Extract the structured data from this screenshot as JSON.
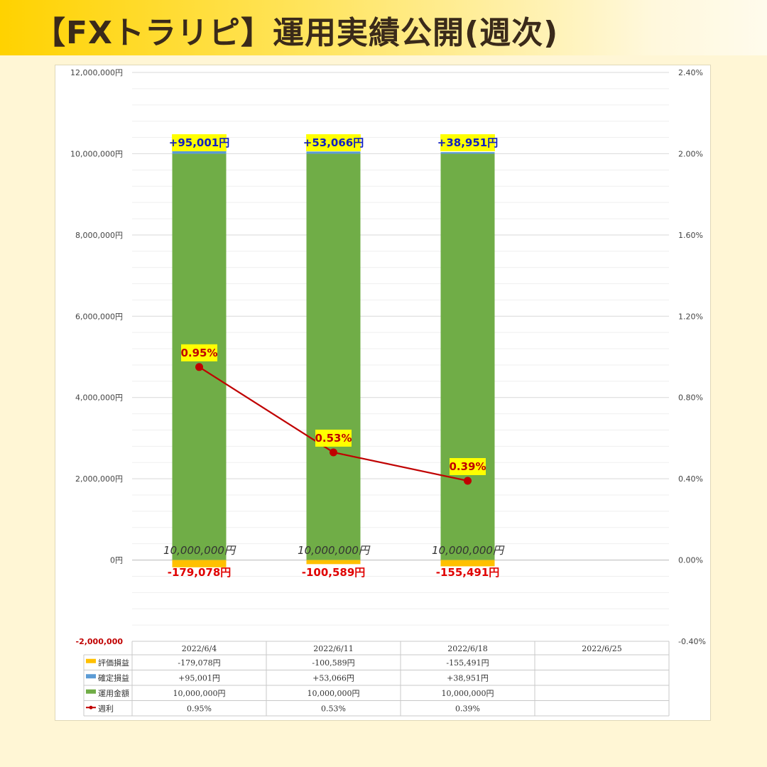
{
  "banner": {
    "title": "【FXトラリピ】運用実績公開(週次)"
  },
  "chart_data": {
    "type": "bar",
    "stacked": true,
    "categories": [
      "2022/6/4",
      "2022/6/11",
      "2022/6/18",
      "2022/6/25"
    ],
    "series": [
      {
        "name": "評価損益",
        "values": [
          -179078,
          -100589,
          -155491,
          null
        ],
        "labels": [
          "-179,078円",
          "-100,589円",
          "-155,491円",
          ""
        ],
        "color": "#ffc000"
      },
      {
        "name": "確定損益",
        "values": [
          95001,
          53066,
          38951,
          null
        ],
        "labels": [
          "+95,001円",
          "+53,066円",
          "+38,951円",
          ""
        ],
        "color": "#5b9bd5"
      },
      {
        "name": "運用金額",
        "values": [
          10000000,
          10000000,
          10000000,
          null
        ],
        "labels": [
          "10,000,000円",
          "10,000,000円",
          "10,000,000円",
          ""
        ],
        "color": "#70ad47"
      },
      {
        "name": "週利",
        "type": "line",
        "axis": "right",
        "values": [
          0.95,
          0.53,
          0.39,
          null
        ],
        "labels": [
          "0.95%",
          "0.53%",
          "0.39%",
          ""
        ],
        "color": "#c00000"
      }
    ],
    "ylim": [
      -2000000,
      12000000
    ],
    "y2lim": [
      -0.4,
      2.4
    ],
    "yticks": [
      {
        "v": 12000000,
        "label": "12,000,000円"
      },
      {
        "v": 10000000,
        "label": "10,000,000円"
      },
      {
        "v": 8000000,
        "label": "8,000,000円"
      },
      {
        "v": 6000000,
        "label": "6,000,000円"
      },
      {
        "v": 4000000,
        "label": "4,000,000円"
      },
      {
        "v": 2000000,
        "label": "2,000,000円"
      },
      {
        "v": 0,
        "label": "0円"
      },
      {
        "v": -2000000,
        "label": "-2,000,000"
      }
    ],
    "y2ticks": [
      {
        "v": 2.4,
        "label": "2.40%"
      },
      {
        "v": 2.0,
        "label": "2.00%"
      },
      {
        "v": 1.6,
        "label": "1.60%"
      },
      {
        "v": 1.2,
        "label": "1.20%"
      },
      {
        "v": 0.8,
        "label": "0.80%"
      },
      {
        "v": 0.4,
        "label": "0.40%"
      },
      {
        "v": 0.0,
        "label": "0.00%"
      },
      {
        "v": -0.4,
        "label": "-0.40%"
      }
    ],
    "table": {
      "rows": [
        [
          "-179,078円",
          "-100,589円",
          "-155,491円",
          ""
        ],
        [
          "+95,001円",
          "+53,066円",
          "+38,951円",
          ""
        ],
        [
          "10,000,000円",
          "10,000,000円",
          "10,000,000円",
          ""
        ],
        [
          "0.95%",
          "0.53%",
          "0.39%",
          ""
        ]
      ]
    }
  }
}
